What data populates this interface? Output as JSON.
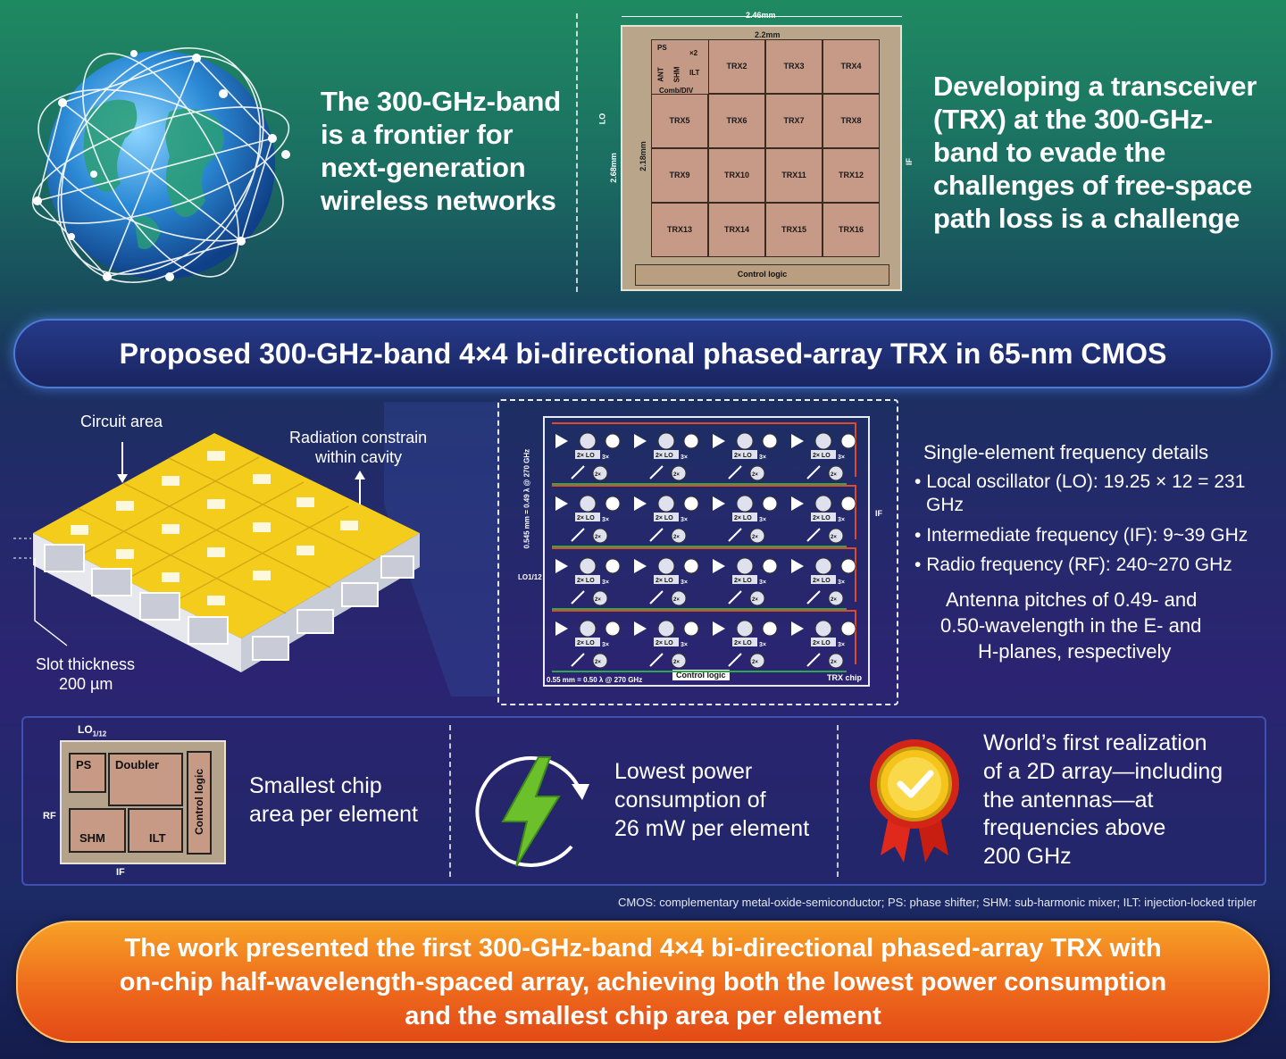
{
  "top": {
    "left_text": "The 300-GHz-band is a frontier for next-generation wireless networks",
    "right_text": "Developing a transceiver (TRX) at the 300-GHz-band to evade the challenges of free-space path loss is a challenge",
    "die": {
      "width_outer": "2.46mm",
      "width_inner": "2.2mm",
      "height_outer": "2.68mm",
      "height_inner": "2.18mm",
      "lo": "LO",
      "if": "IF",
      "ps": "PS",
      "x2": "×2",
      "ant": "ANT",
      "shm": "SHM",
      "ilt": "ILT",
      "comb": "Comb/DIV",
      "control": "Control logic",
      "cells": [
        "TRX2",
        "TRX3",
        "TRX4",
        "TRX5",
        "TRX6",
        "TRX7",
        "TRX8",
        "TRX9",
        "TRX10",
        "TRX11",
        "TRX12",
        "TRX13",
        "TRX14",
        "TRX15",
        "TRX16"
      ]
    }
  },
  "banner": "Proposed 300-GHz-band 4×4 bi-directional phased-array TRX in 65-nm CMOS",
  "array_3d": {
    "circuit_area": "Circuit area",
    "radiation_1": "Radiation constrain",
    "radiation_2": "within cavity",
    "slot_1": "Slot thickness",
    "slot_2": "200 µm"
  },
  "schematic": {
    "vertical_dim": "0.545 mm = 0.49 λ @ 270 GHz",
    "horizontal_dim": "0.55 mm = 0.50 λ @ 270 GHz",
    "lo": "LO1/12",
    "if": "IF",
    "control": "Control logic",
    "chip": "TRX chip",
    "lo_label": "2× LO",
    "mult3": "3×",
    "mult2": "2×"
  },
  "details": {
    "heading": "Single-element frequency details",
    "lo_1": "Local oscillator (LO): 19.25 × 12 = 231",
    "lo_2": "GHz",
    "if": "Intermediate frequency (IF): 9~39 GHz",
    "rf": "Radio frequency (RF): 240~270 GHz",
    "pitch_1": "Antenna pitches of 0.49- and",
    "pitch_2": "0.50-wavelength in the E- and",
    "pitch_3": "H-planes, respectively"
  },
  "features": {
    "chip_lo": "LO",
    "chip_lo_sub": "1/12",
    "chip_rf": "RF",
    "chip_if": "IF",
    "chip_ps": "PS",
    "chip_doubler": "Doubler",
    "chip_shm": "SHM",
    "chip_ilt": "ILT",
    "chip_control": "Control logic",
    "area_1": "Smallest chip",
    "area_2": "area per element",
    "power_1": "Lowest power",
    "power_2": "consumption of",
    "power_3": "26 mW per element",
    "first_1": "World’s first realization",
    "first_2": "of a 2D array—including",
    "first_3": "the antennas—at",
    "first_4": "frequencies above",
    "first_5": "200 GHz"
  },
  "footnote": "CMOS: complementary metal-oxide-semiconductor; PS: phase shifter; SHM: sub-harmonic mixer; ILT: injection-locked tripler",
  "conclusion_1": "The work presented the first 300-GHz-band 4×4 bi-directional phased-array TRX with",
  "conclusion_2": "on-chip half-wavelength-spaced array, achieving both the lowest power consumption",
  "conclusion_3": "and the smallest chip area per element",
  "colors": {
    "accent_orange": "#ee6a1c",
    "banner_blue": "#1a2560",
    "gold": "#f2c515",
    "lightning": "#6cc02c"
  }
}
